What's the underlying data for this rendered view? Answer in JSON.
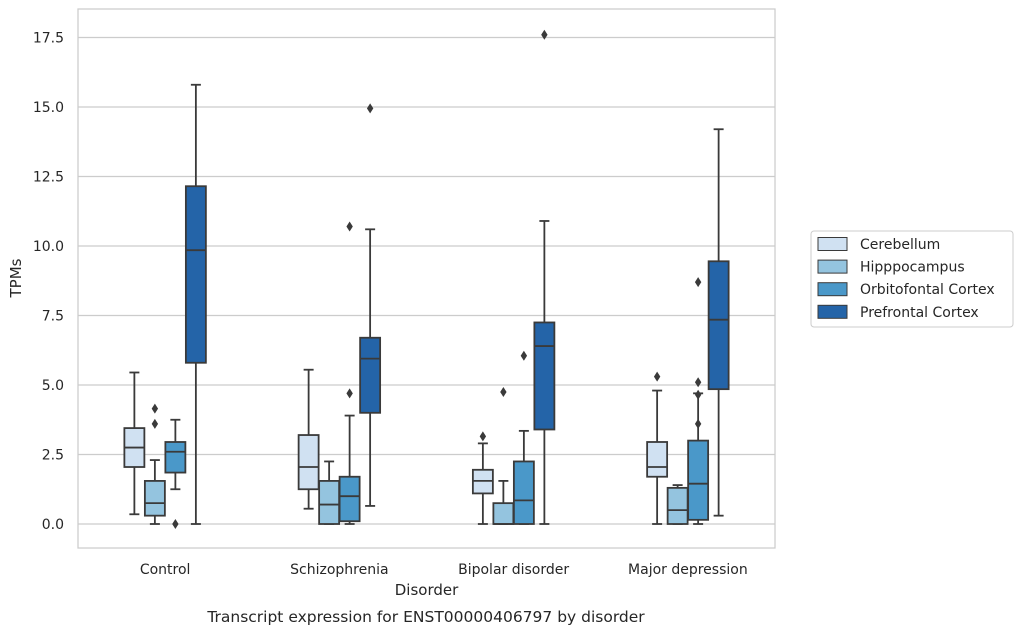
{
  "chart_data": {
    "type": "boxplot",
    "caption": "Transcript expression for ENST00000406797 by disorder",
    "xlabel": "Disorder",
    "ylabel": "TPMs",
    "ylim": [
      -0.85,
      18.5
    ],
    "yticks": [
      "0.0",
      "2.5",
      "5.0",
      "7.5",
      "10.0",
      "12.5",
      "15.0",
      "17.5"
    ],
    "grid": "horizontal",
    "legend_position": "right",
    "categories": [
      "Control",
      "Schizophrenia",
      "Bipolar disorder",
      "Major depression"
    ],
    "series": [
      {
        "name": "Cerebellum",
        "color": "#d0e1f2",
        "boxes": [
          {
            "whislo": 0.35,
            "q1": 2.05,
            "med": 2.75,
            "q3": 3.45,
            "whishi": 5.45,
            "fliers": []
          },
          {
            "whislo": 0.55,
            "q1": 1.25,
            "med": 2.05,
            "q3": 3.2,
            "whishi": 5.55,
            "fliers": []
          },
          {
            "whislo": 0.0,
            "q1": 1.1,
            "med": 1.55,
            "q3": 1.95,
            "whishi": 2.9,
            "fliers": [
              3.15
            ]
          },
          {
            "whislo": 0.0,
            "q1": 1.7,
            "med": 2.05,
            "q3": 2.95,
            "whishi": 4.8,
            "fliers": [
              5.3
            ]
          }
        ]
      },
      {
        "name": "Hipppocampus",
        "color": "#94c4df",
        "boxes": [
          {
            "whislo": 0.0,
            "q1": 0.3,
            "med": 0.75,
            "q3": 1.55,
            "whishi": 2.3,
            "fliers": [
              3.6,
              4.15
            ]
          },
          {
            "whislo": 0.0,
            "q1": 0.0,
            "med": 0.7,
            "q3": 1.55,
            "whishi": 2.25,
            "fliers": []
          },
          {
            "whislo": 0.0,
            "q1": 0.0,
            "med": 0.0,
            "q3": 0.75,
            "whishi": 1.55,
            "fliers": [
              4.75
            ]
          },
          {
            "whislo": 0.0,
            "q1": 0.0,
            "med": 0.5,
            "q3": 1.3,
            "whishi": 1.4,
            "fliers": []
          }
        ]
      },
      {
        "name": "Orbitofontal Cortex",
        "color": "#4a98c9",
        "boxes": [
          {
            "whislo": 1.25,
            "q1": 1.85,
            "med": 2.6,
            "q3": 2.95,
            "whishi": 3.75,
            "fliers": [
              0.0
            ]
          },
          {
            "whislo": 0.0,
            "q1": 0.1,
            "med": 1.0,
            "q3": 1.7,
            "whishi": 3.9,
            "fliers": [
              4.7,
              10.7
            ]
          },
          {
            "whislo": 0.0,
            "q1": 0.0,
            "med": 0.85,
            "q3": 2.25,
            "whishi": 3.35,
            "fliers": [
              6.05
            ]
          },
          {
            "whislo": 0.0,
            "q1": 0.15,
            "med": 1.45,
            "q3": 3.0,
            "whishi": 4.7,
            "fliers": [
              3.6,
              4.65,
              5.1,
              8.7
            ]
          }
        ]
      },
      {
        "name": "Prefrontal Cortex",
        "color": "#2464a8",
        "boxes": [
          {
            "whislo": 0.0,
            "q1": 5.8,
            "med": 9.85,
            "q3": 12.15,
            "whishi": 15.8,
            "fliers": []
          },
          {
            "whislo": 0.65,
            "q1": 4.0,
            "med": 5.95,
            "q3": 6.7,
            "whishi": 10.6,
            "fliers": [
              14.95
            ]
          },
          {
            "whislo": 0.0,
            "q1": 3.4,
            "med": 6.4,
            "q3": 7.25,
            "whishi": 10.9,
            "fliers": [
              17.6
            ]
          },
          {
            "whislo": 0.3,
            "q1": 4.85,
            "med": 7.35,
            "q3": 9.45,
            "whishi": 14.2,
            "fliers": []
          }
        ]
      }
    ]
  }
}
